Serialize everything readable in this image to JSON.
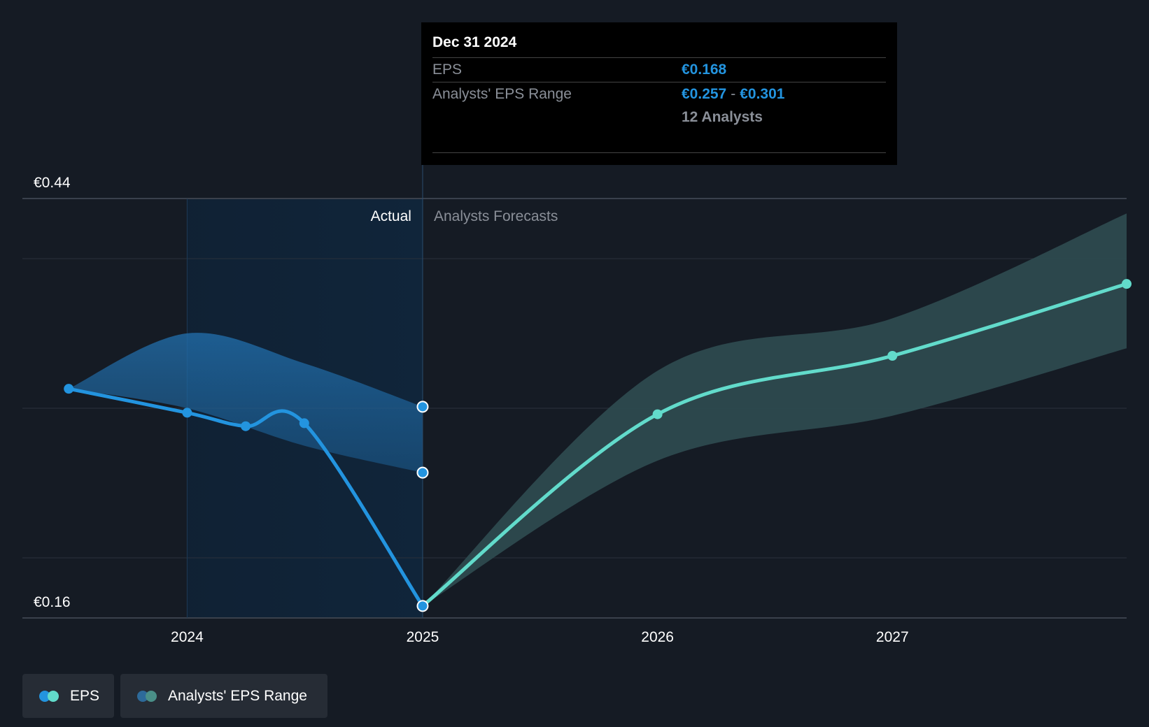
{
  "chart_data": {
    "type": "line",
    "y_axis_labels": [
      "€0.44",
      "€0.16"
    ],
    "ylim": [
      0.16,
      0.44
    ],
    "x_tick_labels": [
      "2024",
      "2025",
      "2026",
      "2027"
    ],
    "x_ticks": [
      "2024-01-01",
      "2025-01-01",
      "2026-01-01",
      "2027-01-01"
    ],
    "xlim": [
      "2023-04-20",
      "2027-12-31"
    ],
    "divider_date": "2025-01-01",
    "section_labels": {
      "actual": "Actual",
      "forecast": "Analysts Forecasts"
    },
    "grid": true,
    "series": [
      {
        "name": "EPS",
        "color": "#2394df",
        "points": [
          {
            "x": "2023-07-01",
            "y": 0.313
          },
          {
            "x": "2024-01-01",
            "y": 0.297
          },
          {
            "x": "2024-04-01",
            "y": 0.288
          },
          {
            "x": "2024-07-01",
            "y": 0.29
          },
          {
            "x": "2025-01-01",
            "y": 0.168
          }
        ]
      },
      {
        "name": "EPS",
        "color": "#62dbcb",
        "points": [
          {
            "x": "2025-01-01",
            "y": 0.168
          },
          {
            "x": "2026-01-01",
            "y": 0.296
          },
          {
            "x": "2027-01-01",
            "y": 0.335
          },
          {
            "x": "2027-12-31",
            "y": 0.383
          }
        ]
      }
    ],
    "ranges": [
      {
        "name": "Analysts' EPS Range",
        "color": "#2d84c7",
        "upper": [
          {
            "x": "2023-07-01",
            "y": 0.313
          },
          {
            "x": "2024-01-01",
            "y": 0.35
          },
          {
            "x": "2024-07-01",
            "y": 0.33
          },
          {
            "x": "2025-01-01",
            "y": 0.301
          }
        ],
        "lower": [
          {
            "x": "2023-07-01",
            "y": 0.313
          },
          {
            "x": "2024-01-01",
            "y": 0.3
          },
          {
            "x": "2024-07-01",
            "y": 0.275
          },
          {
            "x": "2025-01-01",
            "y": 0.257
          }
        ]
      },
      {
        "name": "Analysts' EPS Range",
        "color": "#2d4a4f",
        "upper": [
          {
            "x": "2025-01-01",
            "y": 0.168
          },
          {
            "x": "2026-01-01",
            "y": 0.325
          },
          {
            "x": "2027-01-01",
            "y": 0.36
          },
          {
            "x": "2027-12-31",
            "y": 0.43
          }
        ],
        "lower": [
          {
            "x": "2025-01-01",
            "y": 0.168
          },
          {
            "x": "2026-01-01",
            "y": 0.265
          },
          {
            "x": "2027-01-01",
            "y": 0.295
          },
          {
            "x": "2027-12-31",
            "y": 0.34
          }
        ]
      }
    ],
    "tooltip": {
      "date": "Dec 31 2024",
      "eps_label": "EPS",
      "eps_value": "€0.168",
      "range_label": "Analysts' EPS Range",
      "range_low": "€0.257",
      "range_sep": "-",
      "range_high": "€0.301",
      "analysts": "12 Analysts"
    }
  },
  "legend": {
    "eps": "EPS",
    "range": "Analysts' EPS Range",
    "colors": {
      "eps_actual": "#2394df",
      "eps_forecast": "#62dbcb",
      "range_actual": "#2d6a9a",
      "range_forecast": "#4a8f88"
    }
  }
}
